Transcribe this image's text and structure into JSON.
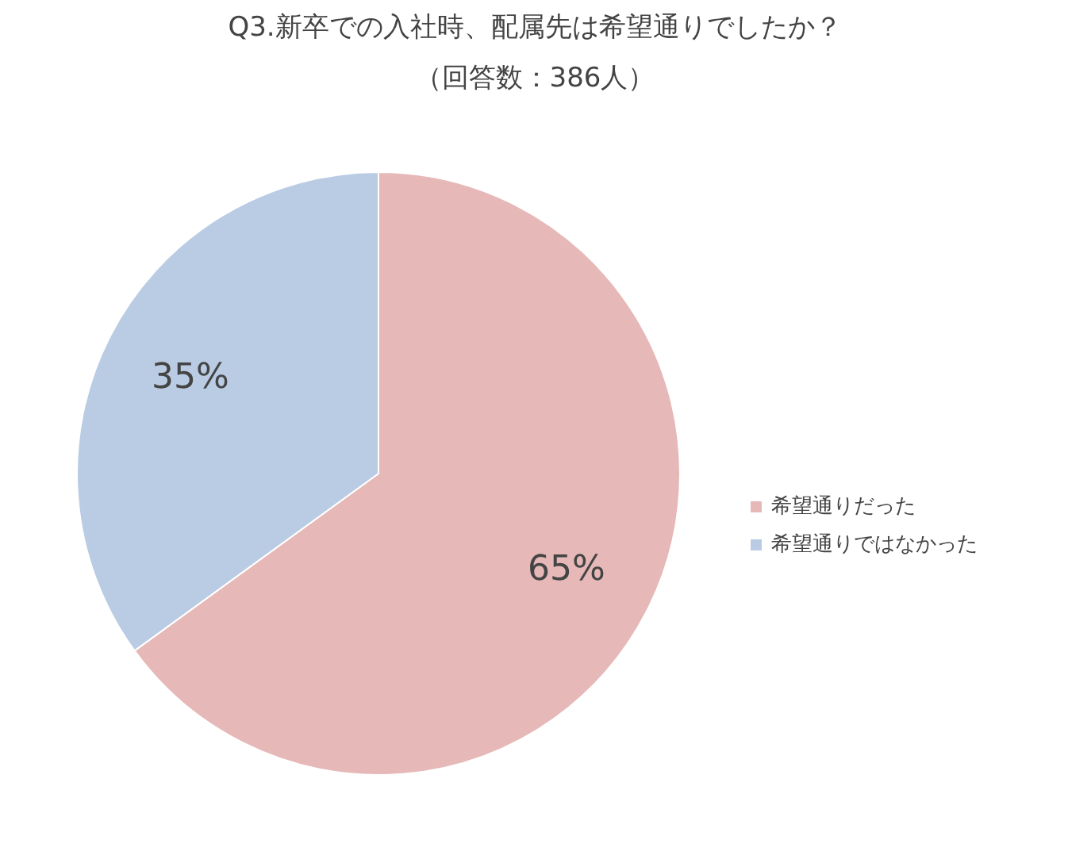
{
  "chart_data": {
    "type": "pie",
    "title": "Q3.新卒での入社時、配属先は希望通りでしたか？",
    "subtitle": "（回答数：386人）",
    "categories": [
      "希望通りだった",
      "希望通りではなかった"
    ],
    "values": [
      65,
      35
    ],
    "colors": [
      "#e6b8b7",
      "#b9cce4"
    ],
    "value_labels": [
      "65%",
      "35%"
    ],
    "legend": "right"
  }
}
